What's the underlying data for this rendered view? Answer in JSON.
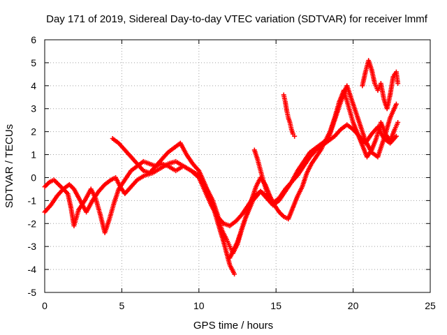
{
  "chart_data": {
    "type": "scatter",
    "title": "Day 171 of 2019, Sidereal Day-to-day VTEC variation (SDTVAR) for receiver lmmf",
    "xlabel": "GPS time / hours",
    "ylabel": "SDTVAR / TECUs",
    "xlim": [
      0,
      25
    ],
    "ylim": [
      -5,
      6
    ],
    "xticks": [
      0,
      5,
      10,
      15,
      20,
      25
    ],
    "yticks": [
      -5,
      -4,
      -3,
      -2,
      -1,
      0,
      1,
      2,
      3,
      4,
      5,
      6
    ],
    "grid": true,
    "marker": "+",
    "color": "#ff0000",
    "series": [
      {
        "x": [
          0.0,
          0.3,
          0.6,
          0.9,
          1.2,
          1.5,
          1.7,
          1.9,
          2.2,
          2.6,
          3.0,
          3.3,
          3.6,
          3.9,
          4.2,
          4.5,
          4.8,
          5.2,
          5.6,
          6.0,
          6.4,
          6.8,
          7.2,
          7.6,
          8.0,
          8.5,
          9.0,
          9.5,
          10.0,
          10.3,
          10.6,
          10.9,
          11.2,
          11.5,
          11.8,
          12.0,
          12.2,
          12.5,
          12.8,
          13.1,
          13.4,
          13.7,
          14.0,
          14.3,
          14.6,
          14.9,
          15.2,
          15.5,
          15.8,
          16.1,
          16.4,
          16.7,
          17.0,
          17.3,
          17.6,
          17.9,
          18.2,
          18.5,
          18.8,
          19.1,
          19.4,
          19.7,
          20.0,
          20.3,
          20.6,
          20.9,
          21.2,
          21.5,
          21.8,
          22.1,
          22.4,
          22.7,
          22.9
        ],
        "y": [
          -0.4,
          -0.2,
          -0.1,
          -0.3,
          -0.5,
          -0.7,
          -1.3,
          -2.1,
          -1.4,
          -1.0,
          -0.5,
          -0.9,
          -1.6,
          -2.4,
          -1.8,
          -1.1,
          -0.5,
          -0.1,
          0.3,
          0.5,
          0.7,
          0.6,
          0.5,
          0.6,
          0.5,
          0.3,
          0.5,
          0.3,
          0.1,
          -0.3,
          -0.6,
          -1.0,
          -1.6,
          -2.3,
          -2.7,
          -3.0,
          -3.3,
          -2.9,
          -2.2,
          -1.6,
          -1.0,
          -0.4,
          0.0,
          -0.3,
          -0.8,
          -1.2,
          -1.5,
          -1.7,
          -1.8,
          -1.3,
          -0.8,
          -0.4,
          0.2,
          0.6,
          0.9,
          1.2,
          1.6,
          2.0,
          2.6,
          3.3,
          3.8,
          3.1,
          2.4,
          1.9,
          1.4,
          0.9,
          1.2,
          1.7,
          2.4,
          1.9,
          1.6,
          2.1,
          2.4
        ]
      },
      {
        "x": [
          0.0,
          0.4,
          0.8,
          1.2,
          1.6,
          1.9,
          2.3,
          2.7,
          3.1,
          3.5,
          3.9,
          4.3,
          4.6,
          4.9,
          5.2,
          5.6,
          6.0,
          6.5,
          7.0,
          7.5,
          8.0,
          8.5,
          9.0,
          9.5,
          10.0,
          10.4,
          10.8,
          11.2,
          11.6,
          12.0,
          12.4,
          12.8,
          13.2,
          13.6,
          14.0,
          14.4,
          14.8,
          15.2,
          15.6,
          16.0,
          16.4,
          16.8,
          17.2,
          17.6,
          18.0,
          18.4,
          18.8,
          19.2,
          19.6,
          20.0,
          20.4,
          20.8,
          21.2,
          21.6,
          22.0,
          22.4,
          22.8
        ],
        "y": [
          -1.5,
          -1.2,
          -0.8,
          -0.5,
          -0.3,
          -0.5,
          -1.0,
          -1.5,
          -1.0,
          -0.6,
          -0.3,
          -0.1,
          0.0,
          -0.4,
          -0.7,
          -0.4,
          -0.1,
          0.1,
          0.2,
          0.4,
          0.6,
          0.7,
          0.5,
          0.3,
          0.0,
          -0.6,
          -1.2,
          -1.7,
          -2.0,
          -2.1,
          -1.9,
          -1.6,
          -1.2,
          -0.8,
          -0.6,
          -0.9,
          -1.2,
          -1.0,
          -0.6,
          -0.2,
          0.1,
          0.5,
          0.9,
          1.2,
          1.4,
          1.6,
          1.8,
          2.1,
          2.3,
          2.1,
          1.8,
          1.5,
          1.9,
          2.2,
          1.7,
          1.5,
          1.8
        ]
      },
      {
        "x": [
          4.4,
          4.8,
          5.2,
          5.6,
          6.0,
          6.4,
          6.8,
          7.2,
          7.6,
          8.0,
          8.4,
          8.8,
          9.2,
          9.6,
          10.0,
          10.4,
          10.8,
          11.2,
          11.6,
          12.0,
          12.3
        ],
        "y": [
          1.7,
          1.5,
          1.2,
          0.9,
          0.6,
          0.3,
          0.2,
          0.5,
          0.8,
          1.1,
          1.3,
          1.5,
          1.0,
          0.6,
          0.3,
          -0.3,
          -1.0,
          -1.9,
          -2.8,
          -3.8,
          -4.2
        ]
      },
      {
        "x": [
          12.0,
          12.5,
          13.0,
          13.5,
          14.0,
          14.4,
          14.8,
          15.2,
          15.6,
          16.0,
          16.4,
          16.8,
          17.2,
          17.6,
          18.0,
          18.4,
          18.8,
          19.2,
          19.6,
          20.0,
          20.4,
          20.8,
          21.2,
          21.6,
          22.0,
          22.4,
          22.8
        ],
        "y": [
          -3.5,
          -2.8,
          -1.8,
          -1.0,
          -0.6,
          -0.8,
          -1.1,
          -0.9,
          -0.5,
          -0.2,
          0.3,
          0.7,
          1.1,
          1.3,
          1.5,
          1.7,
          2.5,
          3.3,
          4.0,
          3.2,
          2.4,
          1.6,
          1.1,
          0.9,
          1.7,
          2.6,
          3.2
        ]
      },
      {
        "x": [
          13.6,
          13.8,
          14.0,
          14.2,
          14.4,
          14.6
        ],
        "y": [
          1.2,
          0.8,
          0.3,
          -0.2,
          -0.6,
          -0.9
        ]
      },
      {
        "x": [
          15.5,
          15.6,
          15.7,
          15.8,
          15.9,
          16.0,
          16.1,
          16.2
        ],
        "y": [
          3.6,
          3.3,
          2.9,
          2.6,
          2.4,
          2.1,
          1.9,
          1.8
        ]
      },
      {
        "x": [
          20.6,
          20.8,
          21.0,
          21.2,
          21.4,
          21.6,
          21.8,
          22.0,
          22.2,
          22.4,
          22.6,
          22.8,
          22.9
        ],
        "y": [
          4.0,
          4.6,
          5.1,
          4.7,
          4.1,
          3.8,
          4.1,
          3.4,
          3.0,
          3.6,
          4.4,
          4.6,
          4.1
        ]
      }
    ]
  }
}
